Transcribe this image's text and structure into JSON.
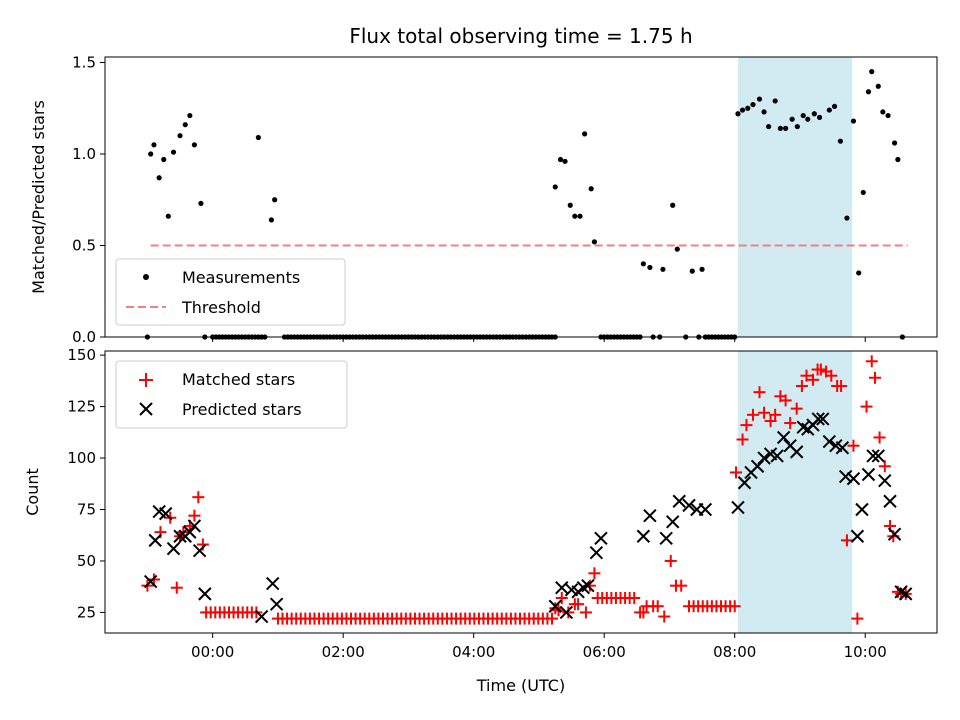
{
  "chart_data": {
    "title": "Flux total observing time = 1.75 h",
    "xlabel": "Time (UTC)",
    "x_unit": "hours UTC",
    "xlim": [
      -1.65,
      11.1
    ],
    "xticks": [
      0,
      2,
      4,
      6,
      8,
      10
    ],
    "xtick_labels": [
      "00:00",
      "02:00",
      "04:00",
      "06:00",
      "08:00",
      "10:00"
    ],
    "shaded_region": {
      "x_start": 8.05,
      "x_end": 9.8,
      "color": "#add8e6"
    },
    "top": {
      "type": "scatter",
      "ylabel": "Matched/Predicted stars",
      "ylim": [
        0,
        1.53
      ],
      "yticks": [
        0.0,
        0.5,
        1.0,
        1.5
      ],
      "ytick_labels": [
        "0.0",
        "0.5",
        "1.0",
        "1.5"
      ],
      "legend": {
        "position": "lower-left",
        "entries": [
          "Measurements",
          "Threshold"
        ]
      },
      "threshold": {
        "name": "Threshold",
        "value": 0.5,
        "x_range": [
          -0.95,
          10.65
        ],
        "color": "#f08080"
      },
      "measurements": {
        "name": "Measurements",
        "color": "#000000",
        "x": [
          -0.95,
          -0.9,
          -0.82,
          -0.75,
          -0.68,
          -0.6,
          -0.5,
          -0.42,
          -0.35,
          -0.28,
          -0.18,
          -0.12,
          0.7,
          0.9,
          0.95,
          5.25,
          5.33,
          5.4,
          5.48,
          5.55,
          5.63,
          5.7,
          5.8,
          5.85,
          5.95,
          6.6,
          6.7,
          6.9,
          7.05,
          7.12,
          7.35,
          7.5,
          8.05,
          8.12,
          8.2,
          8.28,
          8.38,
          8.45,
          8.52,
          8.62,
          8.7,
          8.78,
          8.88,
          8.96,
          9.05,
          9.12,
          9.22,
          9.3,
          9.45,
          9.53,
          9.62,
          9.72,
          9.82,
          9.9,
          9.97,
          10.05,
          10.1,
          10.2,
          10.27,
          10.35,
          10.45,
          10.5,
          10.57
        ],
        "y": [
          1.0,
          1.05,
          0.87,
          0.97,
          0.66,
          1.01,
          1.1,
          1.16,
          1.21,
          1.05,
          0.73,
          0.0,
          1.09,
          0.64,
          0.75,
          0.82,
          0.97,
          0.96,
          0.72,
          0.66,
          0.66,
          1.11,
          0.81,
          0.52,
          0.0,
          0.4,
          0.38,
          0.37,
          0.72,
          0.48,
          0.36,
          0.37,
          1.22,
          1.24,
          1.25,
          1.27,
          1.3,
          1.23,
          1.15,
          1.29,
          1.14,
          1.14,
          1.19,
          1.15,
          1.21,
          1.19,
          1.22,
          1.2,
          1.24,
          1.26,
          1.07,
          0.65,
          1.18,
          0.35,
          0.79,
          1.34,
          1.45,
          1.37,
          1.23,
          1.21,
          1.06,
          0.97,
          0.0
        ],
        "zero_values": {
          "y": 0.0,
          "x_ranges": [
            [
              0.0,
              0.75
            ],
            [
              1.1,
              5.25
            ],
            [
              6.0,
              6.55
            ],
            [
              7.55,
              8.0
            ]
          ],
          "step": 0.05,
          "x_extra": [
            -1.0,
            0.8,
            6.75,
            6.85,
            7.25,
            7.45
          ]
        }
      }
    },
    "bottom": {
      "type": "scatter",
      "ylabel": "Count",
      "ylim": [
        15,
        152
      ],
      "yticks": [
        25,
        50,
        75,
        100,
        125,
        150
      ],
      "ytick_labels": [
        "25",
        "50",
        "75",
        "100",
        "125",
        "150"
      ],
      "legend": {
        "position": "top-left",
        "entries": [
          "Matched stars",
          "Predicted stars"
        ]
      },
      "series": [
        {
          "name": "Matched stars",
          "marker": "plus",
          "color": "#ff0000",
          "x": [
            -1.0,
            -0.9,
            -0.8,
            -0.65,
            -0.55,
            -0.5,
            -0.45,
            -0.35,
            -0.28,
            -0.22,
            -0.15,
            5.25,
            5.3,
            5.35,
            5.45,
            5.55,
            5.6,
            5.72,
            5.78,
            5.85,
            6.55,
            6.6,
            6.65,
            6.75,
            6.82,
            6.92,
            7.02,
            7.1,
            7.18,
            8.02,
            8.12,
            8.18,
            8.28,
            8.38,
            8.45,
            8.55,
            8.62,
            8.7,
            8.78,
            8.85,
            8.95,
            9.03,
            9.1,
            9.2,
            9.27,
            9.32,
            9.4,
            9.48,
            9.57,
            9.63,
            9.72,
            9.82,
            9.88,
            10.02,
            10.1,
            10.15,
            10.22,
            10.3,
            10.38,
            10.43,
            10.5,
            10.55,
            10.62
          ],
          "y": [
            38,
            41,
            64,
            71,
            37,
            62,
            64,
            67,
            72,
            81,
            58,
            27,
            26,
            32,
            25,
            29,
            29,
            25,
            38,
            44,
            25,
            25,
            28,
            28,
            28,
            23,
            50,
            38,
            38,
            93,
            109,
            116,
            121,
            132,
            122,
            118,
            121,
            130,
            128,
            117,
            124,
            135,
            140,
            138,
            143,
            143,
            142,
            140,
            135,
            135,
            60,
            106,
            22,
            125,
            147,
            139,
            110,
            96,
            67,
            62,
            35,
            34,
            34
          ],
          "constant_runs": [
            {
              "x_start": -0.1,
              "x_end": 0.7,
              "step": 0.07,
              "y": 25
            },
            {
              "x_start": 1.0,
              "x_end": 5.2,
              "step": 0.07,
              "y": 22
            },
            {
              "x_start": 5.9,
              "x_end": 6.5,
              "step": 0.07,
              "y": 32
            },
            {
              "x_start": 7.3,
              "x_end": 8.0,
              "step": 0.07,
              "y": 28
            }
          ]
        },
        {
          "name": "Predicted stars",
          "marker": "x",
          "color": "#000000",
          "x": [
            -0.95,
            -0.88,
            -0.82,
            -0.72,
            -0.6,
            -0.5,
            -0.42,
            -0.35,
            -0.28,
            -0.2,
            -0.12,
            0.75,
            0.92,
            0.98,
            5.25,
            5.35,
            5.42,
            5.5,
            5.6,
            5.68,
            5.75,
            5.88,
            5.95,
            6.6,
            6.7,
            6.95,
            7.05,
            7.15,
            7.3,
            7.42,
            7.55,
            8.05,
            8.15,
            8.25,
            8.35,
            8.45,
            8.55,
            8.65,
            8.75,
            8.85,
            8.95,
            9.05,
            9.12,
            9.2,
            9.28,
            9.35,
            9.45,
            9.55,
            9.65,
            9.7,
            9.82,
            9.88,
            9.95,
            10.05,
            10.12,
            10.2,
            10.3,
            10.38,
            10.45,
            10.55,
            10.62
          ],
          "y": [
            40,
            60,
            74,
            73,
            56,
            62,
            62,
            64,
            67,
            55,
            34,
            23,
            39,
            29,
            28,
            37,
            25,
            36,
            35,
            37,
            38,
            54,
            61,
            62,
            72,
            61,
            69,
            79,
            77,
            75,
            75,
            76,
            88,
            93,
            96,
            100,
            102,
            101,
            110,
            106,
            103,
            115,
            114,
            116,
            119,
            119,
            108,
            106,
            105,
            91,
            90,
            62,
            75,
            92,
            101,
            101,
            89,
            79,
            63,
            35,
            34
          ]
        }
      ]
    }
  }
}
